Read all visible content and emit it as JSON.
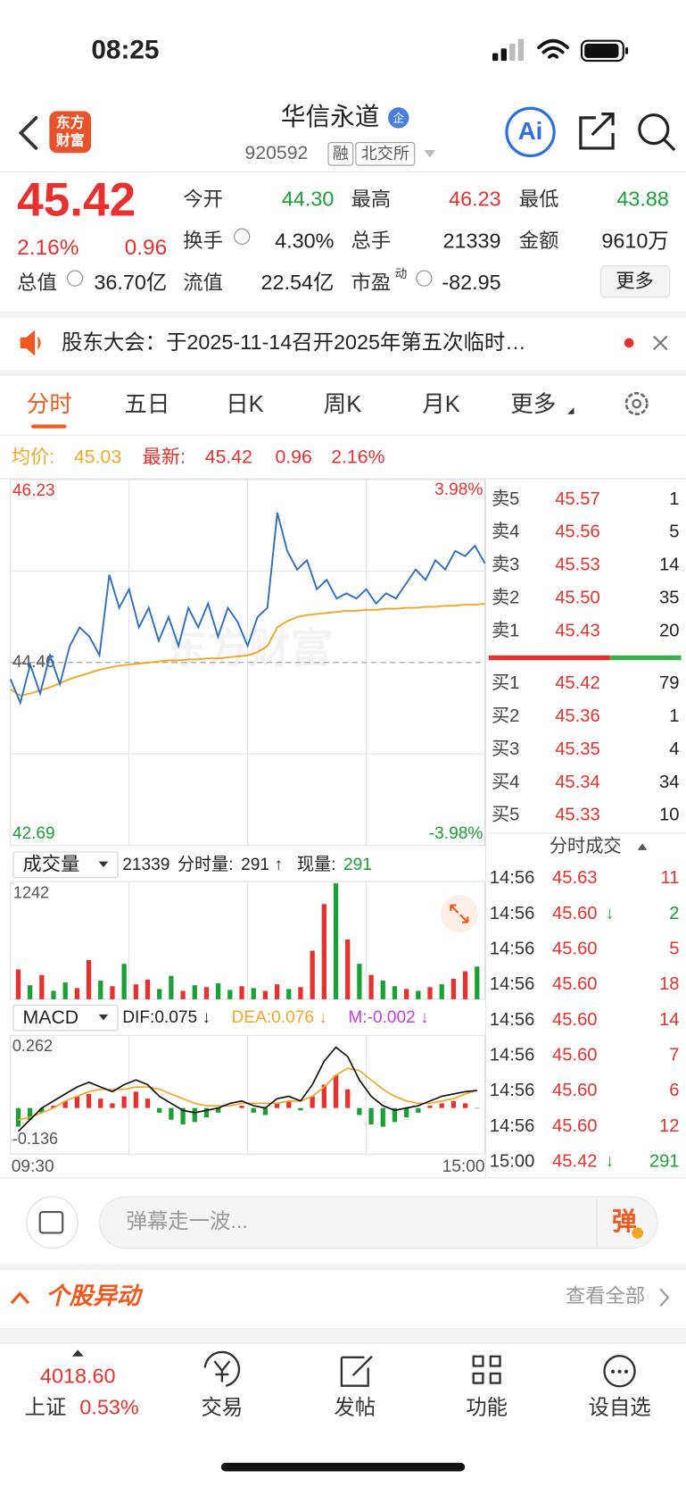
{
  "status_bar": {
    "time": "08:25"
  },
  "header": {
    "logo_top": "东方",
    "logo_bottom": "财富",
    "title": "华信永道",
    "badge": "企",
    "code": "920592",
    "tags": [
      "融",
      "北交所"
    ],
    "ai": "Ai"
  },
  "quote": {
    "price": "45.42",
    "change_pct": "2.16%",
    "change": "0.96",
    "fields": [
      [
        {
          "label": "今开",
          "value": "44.30"
        },
        {
          "label": "最高",
          "value": "46.23"
        },
        {
          "label": "最低",
          "value": "43.88"
        }
      ],
      [
        {
          "label": "换手",
          "value": "4.30%"
        },
        {
          "label": "总手",
          "value": "21339"
        },
        {
          "label": "金额",
          "value": "9610万"
        }
      ],
      [
        {
          "label": "总值",
          "value": "36.70亿"
        },
        {
          "label": "流值",
          "value": "22.54亿"
        },
        {
          "label": "市盈",
          "sup": "动",
          "value": "-82.95"
        }
      ]
    ],
    "more": "更多"
  },
  "notice": {
    "text": "股东大会：于2025-11-14召开2025年第五次临时…"
  },
  "tabs": [
    "分时",
    "五日",
    "日K",
    "周K",
    "月K",
    "更多"
  ],
  "info": {
    "avg_label": "均价:",
    "avg": "45.03",
    "latest_label": "最新:",
    "latest": "45.42",
    "change": "0.96",
    "change_pct": "2.16%"
  },
  "price_chart": {
    "type": "line",
    "ylim": [
      42.69,
      46.23
    ],
    "yticks": [
      42.69,
      44.46,
      46.23
    ],
    "pct_top": "3.98%",
    "pct_bottom": "-3.98%",
    "watermark": "东方财富",
    "x_labels": [
      "09:30",
      "15:00"
    ],
    "series": [
      {
        "color": "#2f6fbf",
        "values": [
          44.3,
          44.07,
          44.44,
          44.16,
          44.53,
          44.25,
          44.62,
          44.8,
          44.71,
          44.53,
          45.31,
          44.99,
          45.17,
          44.8,
          44.99,
          44.67,
          44.9,
          44.62,
          44.99,
          44.8,
          45.03,
          44.71,
          44.99,
          44.85,
          44.62,
          44.9,
          44.99,
          45.91,
          45.54,
          45.36,
          45.45,
          45.17,
          45.26,
          45.08,
          45.13,
          45.08,
          45.17,
          45.03,
          45.13,
          45.08,
          45.22,
          45.36,
          45.26,
          45.45,
          45.36,
          45.54,
          45.49,
          45.59,
          45.42
        ]
      },
      {
        "color": "#f5a623",
        "values": [
          44.2,
          44.14,
          44.16,
          44.19,
          44.22,
          44.26,
          44.3,
          44.33,
          44.36,
          44.39,
          44.41,
          44.43,
          44.44,
          44.45,
          44.46,
          44.47,
          44.48,
          44.48,
          44.49,
          44.49,
          44.5,
          44.5,
          44.51,
          44.52,
          44.53,
          44.56,
          44.62,
          44.8,
          44.86,
          44.9,
          44.92,
          44.93,
          44.94,
          44.95,
          44.96,
          44.96,
          44.97,
          44.97,
          44.98,
          44.98,
          44.99,
          44.99,
          45.0,
          45.0,
          45.01,
          45.01,
          45.02,
          45.02,
          45.03
        ]
      }
    ]
  },
  "volume": {
    "label": "成交量",
    "total": "21339",
    "period_label": "分时量:",
    "period": "291 ↑",
    "now_label": "现量:",
    "now": "291",
    "type": "bar",
    "ylim": [
      0,
      1242
    ],
    "yticks": [
      1242
    ],
    "values": [
      320,
      150,
      260,
      90,
      180,
      120,
      420,
      200,
      140,
      380,
      160,
      210,
      110,
      250,
      90,
      150,
      130,
      170,
      100,
      140,
      120,
      90,
      160,
      110,
      130,
      520,
      1020,
      1242,
      640,
      380,
      260,
      200,
      140,
      110,
      90,
      130,
      160,
      220,
      300,
      350
    ],
    "colors": [
      "#e8312f",
      "#1aa136",
      "#e8312f",
      "#1aa136",
      "#1aa136",
      "#e8312f",
      "#e8312f",
      "#1aa136",
      "#e8312f",
      "#1aa136",
      "#e8312f",
      "#e8312f",
      "#1aa136",
      "#1aa136",
      "#e8312f",
      "#1aa136",
      "#e8312f",
      "#1aa136",
      "#1aa136",
      "#e8312f",
      "#1aa136",
      "#e8312f",
      "#e8312f",
      "#1aa136",
      "#e8312f",
      "#e8312f",
      "#e8312f",
      "#1aa136",
      "#e8312f",
      "#1aa136",
      "#e8312f",
      "#1aa136",
      "#1aa136",
      "#e8312f",
      "#1aa136",
      "#e8312f",
      "#1aa136",
      "#e8312f",
      "#e8312f",
      "#1aa136"
    ]
  },
  "macd": {
    "label": "MACD",
    "dif": "DIF:0.075 ↓",
    "dea": "DEA:0.076 ↓",
    "m": "M:-0.002 ↓",
    "type": "bar",
    "ylim": [
      -0.136,
      0.262
    ],
    "yticks": [
      -0.136,
      0.262
    ],
    "up_color": "#e8312f",
    "down_color": "#1aa136",
    "dif_color": "#111111",
    "dea_color": "#f5a623",
    "histogram": [
      -0.08,
      -0.05,
      -0.02,
      0.01,
      0.03,
      0.05,
      0.06,
      0.04,
      0.02,
      0.05,
      0.07,
      0.04,
      -0.02,
      -0.05,
      -0.07,
      -0.06,
      -0.04,
      -0.02,
      0.0,
      0.01,
      -0.02,
      -0.03,
      0.02,
      0.03,
      -0.01,
      0.05,
      0.1,
      0.14,
      0.08,
      -0.03,
      -0.07,
      -0.08,
      -0.06,
      -0.04,
      -0.02,
      0.01,
      0.02,
      0.03,
      0.02,
      -0.002
    ],
    "dif_values": [
      -0.1,
      -0.05,
      0.0,
      0.03,
      0.06,
      0.09,
      0.11,
      0.09,
      0.07,
      0.1,
      0.12,
      0.1,
      0.05,
      0.02,
      -0.01,
      -0.02,
      -0.01,
      0.0,
      0.02,
      0.03,
      0.01,
      0.0,
      0.04,
      0.05,
      0.03,
      0.1,
      0.2,
      0.26,
      0.22,
      0.12,
      0.05,
      0.01,
      -0.01,
      0.0,
      0.01,
      0.03,
      0.05,
      0.06,
      0.07,
      0.075
    ],
    "dea_values": [
      -0.05,
      -0.04,
      -0.02,
      0.0,
      0.03,
      0.05,
      0.07,
      0.08,
      0.08,
      0.08,
      0.09,
      0.09,
      0.08,
      0.06,
      0.04,
      0.02,
      0.01,
      0.01,
      0.01,
      0.02,
      0.02,
      0.02,
      0.02,
      0.03,
      0.03,
      0.05,
      0.09,
      0.14,
      0.17,
      0.16,
      0.12,
      0.08,
      0.05,
      0.03,
      0.02,
      0.02,
      0.03,
      0.04,
      0.06,
      0.076
    ]
  },
  "order_book": {
    "asks": [
      {
        "label": "卖5",
        "price": "45.57",
        "volume": "1"
      },
      {
        "label": "卖4",
        "price": "45.56",
        "volume": "5"
      },
      {
        "label": "卖3",
        "price": "45.53",
        "volume": "14"
      },
      {
        "label": "卖2",
        "price": "45.50",
        "volume": "35"
      },
      {
        "label": "卖1",
        "price": "45.43",
        "volume": "20"
      }
    ],
    "bids": [
      {
        "label": "买1",
        "price": "45.42",
        "volume": "79"
      },
      {
        "label": "买2",
        "price": "45.36",
        "volume": "1"
      },
      {
        "label": "买3",
        "price": "45.35",
        "volume": "4"
      },
      {
        "label": "买4",
        "price": "45.34",
        "volume": "34"
      },
      {
        "label": "买5",
        "price": "45.33",
        "volume": "10"
      }
    ]
  },
  "trades": {
    "title": "分时成交",
    "rows": [
      {
        "time": "14:56",
        "price": "45.63",
        "volume": "11"
      },
      {
        "time": "14:56",
        "price": "45.60",
        "arrow": "↓",
        "volume": "2"
      },
      {
        "time": "14:56",
        "price": "45.60",
        "volume": "5"
      },
      {
        "time": "14:56",
        "price": "45.60",
        "volume": "18"
      },
      {
        "time": "14:56",
        "price": "45.60",
        "volume": "14"
      },
      {
        "time": "14:56",
        "price": "45.60",
        "volume": "7"
      },
      {
        "time": "14:56",
        "price": "45.60",
        "volume": "6"
      },
      {
        "time": "14:56",
        "price": "45.60",
        "volume": "12"
      },
      {
        "time": "15:00",
        "price": "45.42",
        "arrow": "↓",
        "volume": "291"
      }
    ]
  },
  "comment": {
    "placeholder": "弹幕走一波...",
    "button": "弹"
  },
  "section": {
    "title": "个股异动",
    "more": "查看全部"
  },
  "nav": {
    "index_value": "4018.60",
    "index_name": "上证",
    "index_change": "0.53%",
    "items": [
      "交易",
      "发帖",
      "功能",
      "设自选"
    ]
  }
}
